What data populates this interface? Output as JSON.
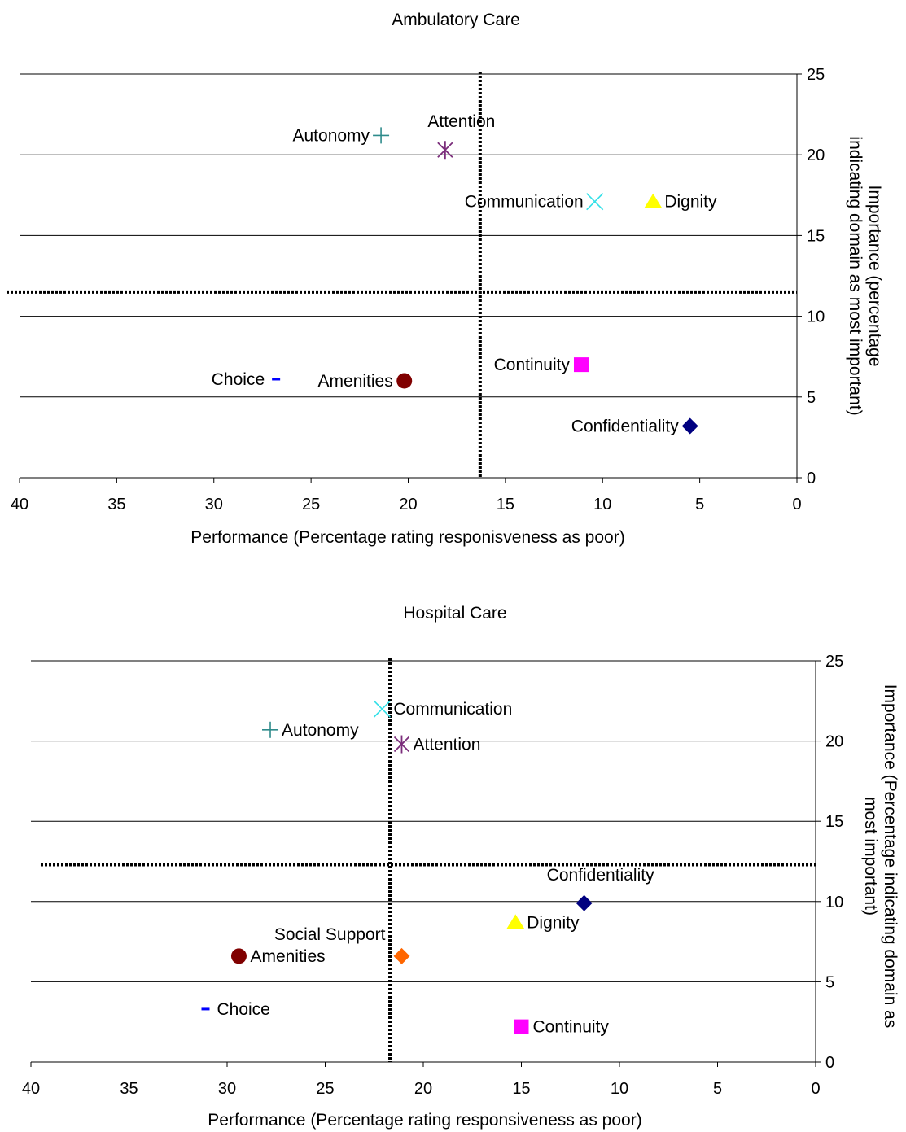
{
  "chart_data": [
    {
      "type": "scatter",
      "title": "Ambulatory Care",
      "xlabel": "Performance (Percentage rating responisveness as poor)",
      "ylabel_lines": [
        "Importance (percentage",
        "indicating domain as most important)"
      ],
      "xlim": [
        40,
        0
      ],
      "ylim": [
        0,
        25
      ],
      "xticks": [
        40,
        35,
        30,
        25,
        20,
        15,
        10,
        5,
        0
      ],
      "yticks": [
        0,
        5,
        10,
        15,
        20,
        25
      ],
      "reference_lines": {
        "x": 16.3,
        "y": 11.5
      },
      "grid": "horizontal",
      "legend": "none",
      "points": [
        {
          "label": "Autonomy",
          "x": 21.4,
          "y": 21.2,
          "marker": "plus",
          "color": "#2e8b8b",
          "label_side": "left"
        },
        {
          "label": "Attention",
          "x": 18.1,
          "y": 20.3,
          "marker": "asterisk",
          "color": "#7b2d7b",
          "label_side": "above"
        },
        {
          "label": "Communication",
          "x": 10.4,
          "y": 17.1,
          "marker": "cross",
          "color": "#33e0e8",
          "label_side": "left"
        },
        {
          "label": "Dignity",
          "x": 7.4,
          "y": 17.1,
          "marker": "triangle",
          "color": "#ffff00",
          "label_side": "right"
        },
        {
          "label": "Continuity",
          "x": 11.1,
          "y": 7.0,
          "marker": "square",
          "color": "#ff00ff",
          "label_side": "left"
        },
        {
          "label": "Amenities",
          "x": 20.2,
          "y": 6.0,
          "marker": "circle",
          "color": "#800000",
          "label_side": "left"
        },
        {
          "label": "Choice",
          "x": 26.8,
          "y": 6.1,
          "marker": "dash",
          "color": "#0000ff",
          "label_side": "left"
        },
        {
          "label": "Confidentiality",
          "x": 5.5,
          "y": 3.2,
          "marker": "diamond",
          "color": "#000080",
          "label_side": "left"
        }
      ]
    },
    {
      "type": "scatter",
      "title": "Hospital Care",
      "xlabel": "Performance (Percentage rating responsiveness as poor)",
      "ylabel_lines": [
        "Importance (Percentage indicating domain as",
        "most important)"
      ],
      "xlim": [
        40,
        0
      ],
      "ylim": [
        0,
        25
      ],
      "xticks": [
        40,
        35,
        30,
        25,
        20,
        15,
        10,
        5,
        0
      ],
      "yticks": [
        0,
        5,
        10,
        15,
        20,
        25
      ],
      "reference_lines": {
        "x": 21.7,
        "y": 12.3
      },
      "grid": "horizontal",
      "legend": "none",
      "points": [
        {
          "label": "Communication",
          "x": 22.1,
          "y": 22.0,
          "marker": "cross",
          "color": "#33e0e8",
          "label_side": "right"
        },
        {
          "label": "Autonomy",
          "x": 27.8,
          "y": 20.7,
          "marker": "plus",
          "color": "#2e8b8b",
          "label_side": "right"
        },
        {
          "label": "Attention",
          "x": 21.1,
          "y": 19.8,
          "marker": "asterisk",
          "color": "#7b2d7b",
          "label_side": "right"
        },
        {
          "label": "Confidentiality",
          "x": 11.8,
          "y": 9.9,
          "marker": "diamond",
          "color": "#000080",
          "label_side": "above"
        },
        {
          "label": "Dignity",
          "x": 15.3,
          "y": 8.7,
          "marker": "triangle",
          "color": "#ffff00",
          "label_side": "right"
        },
        {
          "label": "Social Support",
          "x": 21.1,
          "y": 6.6,
          "marker": "diamond",
          "color": "#ff6600",
          "label_side": "upper-left"
        },
        {
          "label": "Amenities",
          "x": 29.4,
          "y": 6.6,
          "marker": "circle",
          "color": "#800000",
          "label_side": "right"
        },
        {
          "label": "Choice",
          "x": 31.1,
          "y": 3.3,
          "marker": "dash",
          "color": "#0000ff",
          "label_side": "right"
        },
        {
          "label": "Continuity",
          "x": 15.0,
          "y": 2.2,
          "marker": "square",
          "color": "#ff00ff",
          "label_side": "right"
        }
      ]
    }
  ]
}
